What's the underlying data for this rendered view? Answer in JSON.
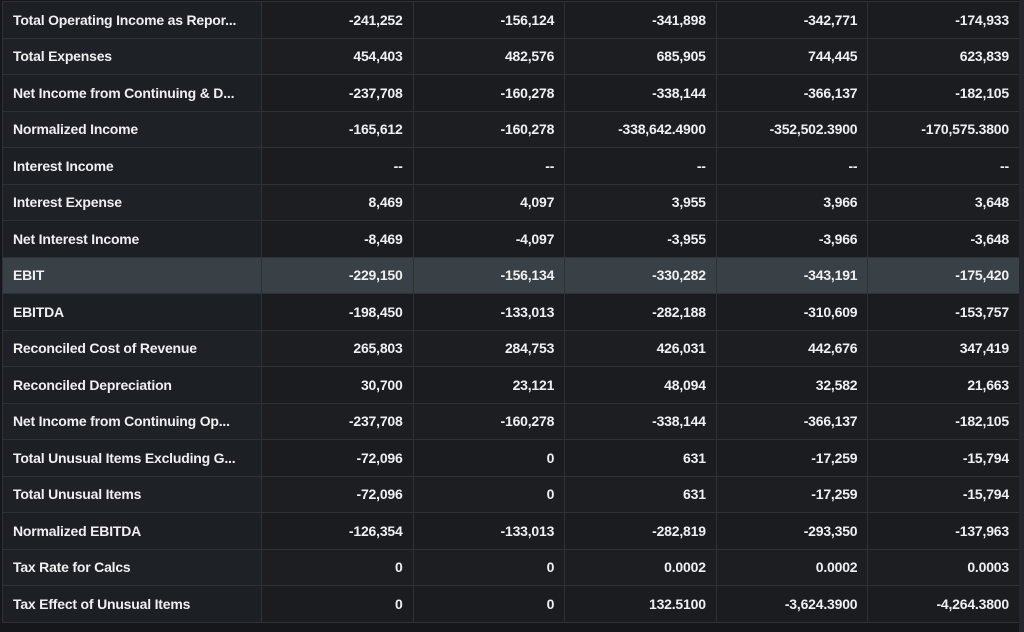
{
  "table": {
    "highlight_index": 7,
    "rows": [
      {
        "label": "Total Operating Income as Repor...",
        "values": [
          "-241,252",
          "-156,124",
          "-341,898",
          "-342,771",
          "-174,933"
        ]
      },
      {
        "label": "Total Expenses",
        "values": [
          "454,403",
          "482,576",
          "685,905",
          "744,445",
          "623,839"
        ]
      },
      {
        "label": "Net Income from Continuing & D...",
        "values": [
          "-237,708",
          "-160,278",
          "-338,144",
          "-366,137",
          "-182,105"
        ]
      },
      {
        "label": "Normalized Income",
        "values": [
          "-165,612",
          "-160,278",
          "-338,642.4900",
          "-352,502.3900",
          "-170,575.3800"
        ]
      },
      {
        "label": "Interest Income",
        "values": [
          "--",
          "--",
          "--",
          "--",
          "--"
        ]
      },
      {
        "label": "Interest Expense",
        "values": [
          "8,469",
          "4,097",
          "3,955",
          "3,966",
          "3,648"
        ]
      },
      {
        "label": "Net Interest Income",
        "values": [
          "-8,469",
          "-4,097",
          "-3,955",
          "-3,966",
          "-3,648"
        ]
      },
      {
        "label": "EBIT",
        "values": [
          "-229,150",
          "-156,134",
          "-330,282",
          "-343,191",
          "-175,420"
        ]
      },
      {
        "label": "EBITDA",
        "values": [
          "-198,450",
          "-133,013",
          "-282,188",
          "-310,609",
          "-153,757"
        ]
      },
      {
        "label": "Reconciled Cost of Revenue",
        "values": [
          "265,803",
          "284,753",
          "426,031",
          "442,676",
          "347,419"
        ]
      },
      {
        "label": "Reconciled Depreciation",
        "values": [
          "30,700",
          "23,121",
          "48,094",
          "32,582",
          "21,663"
        ]
      },
      {
        "label": "Net Income from Continuing Op...",
        "values": [
          "-237,708",
          "-160,278",
          "-338,144",
          "-366,137",
          "-182,105"
        ]
      },
      {
        "label": "Total Unusual Items Excluding G...",
        "values": [
          "-72,096",
          "0",
          "631",
          "-17,259",
          "-15,794"
        ]
      },
      {
        "label": "Total Unusual Items",
        "values": [
          "-72,096",
          "0",
          "631",
          "-17,259",
          "-15,794"
        ]
      },
      {
        "label": "Normalized EBITDA",
        "values": [
          "-126,354",
          "-133,013",
          "-282,819",
          "-293,350",
          "-137,963"
        ]
      },
      {
        "label": "Tax Rate for Calcs",
        "values": [
          "0",
          "0",
          "0.0002",
          "0.0002",
          "0.0003"
        ]
      },
      {
        "label": "Tax Effect of Unusual Items",
        "values": [
          "0",
          "0",
          "132.5100",
          "-3,624.3900",
          "-4,264.3800"
        ]
      }
    ]
  }
}
